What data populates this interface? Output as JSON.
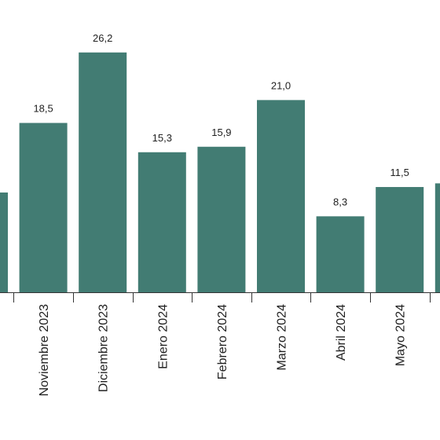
{
  "chart_data": {
    "type": "bar",
    "categories": [
      "",
      "Noviembre 2023",
      "Diciembre 2023",
      "Enero 2024",
      "Febrero 2024",
      "Marzo 2024",
      "Abril 2024",
      "Mayo 2024",
      ""
    ],
    "values": [
      10.9,
      18.5,
      26.2,
      15.3,
      15.9,
      21.0,
      8.3,
      11.5,
      11.9
    ],
    "value_labels": [
      "",
      "18,5",
      "26,2",
      "15,3",
      "15,9",
      "21,0",
      "8,3",
      "11,5",
      ""
    ],
    "bar_color": "#427c73",
    "title": "",
    "xlabel": "",
    "ylabel": "",
    "grid": false,
    "legend": "none"
  }
}
